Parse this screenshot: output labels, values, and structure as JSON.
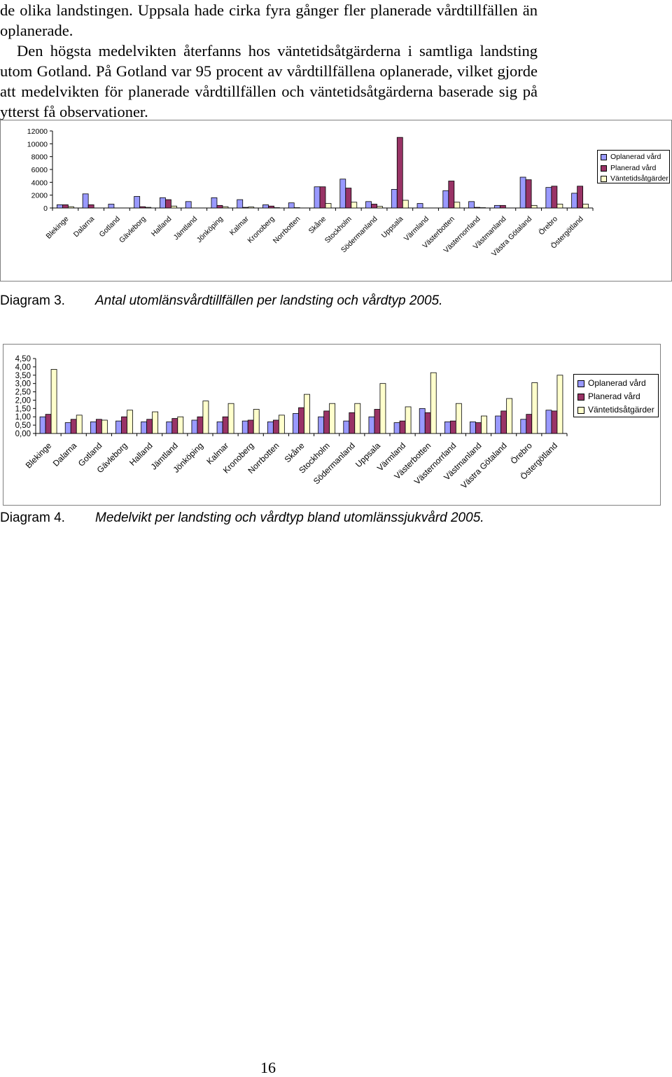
{
  "text": {
    "line1": "de olika landstingen. Uppsala hade cirka fyra gånger fler planerade vårdtillfällen än oplanerade.",
    "para2": "Den högsta medelvikten återfanns hos väntetidsåtgärderna i samtliga landsting utom Gotland. På Gotland var 95 procent av vårdtillfällena oplanerade, vilket gjorde att medelvikten för planerade vårdtillfällen och väntetidsåtgärderna baserade sig på ytterst få observationer."
  },
  "captions": {
    "c3_num": "Diagram 3.",
    "c3_text": "Antal utomlänsvårdtillfällen per landsting och vårdtyp 2005.",
    "c4_num": "Diagram 4.",
    "c4_text": "Medelvikt per landsting och vårdtyp bland utomlänssjukvård 2005."
  },
  "page_number": "16",
  "colors": {
    "oplanerad": "#9999FF",
    "planerad": "#993366",
    "vantetid": "#FFFFCC"
  },
  "chart_data": [
    {
      "type": "bar",
      "title": "Antal utomlänsvårdtillfällen per landsting och vårdtyp 2005",
      "xlabel": "",
      "ylabel": "",
      "ylim": [
        0,
        12000
      ],
      "yticks": [
        "0",
        "2000",
        "4000",
        "6000",
        "8000",
        "10000",
        "12000"
      ],
      "grid": false,
      "legend_position": "right",
      "categories": [
        "Blekinge",
        "Dalarna",
        "Gotland",
        "Gävleborg",
        "Halland",
        "Jämtland",
        "Jönköping",
        "Kalmar",
        "Kronoberg",
        "Norrbotten",
        "Skåne",
        "Stockholm",
        "Södermanland",
        "Uppsala",
        "Värmland",
        "Västerbotten",
        "Västernorrland",
        "Västmanland",
        "Västra Götaland",
        "Örebro",
        "Östergötland"
      ],
      "series": [
        {
          "name": "Oplanerad vård",
          "values": [
            500,
            2200,
            600,
            1800,
            1600,
            1000,
            1600,
            1300,
            500,
            800,
            3300,
            4500,
            1000,
            2900,
            700,
            2700,
            1000,
            400,
            4800,
            3200,
            2300
          ]
        },
        {
          "name": "Planerad vård",
          "values": [
            500,
            500,
            0,
            200,
            1300,
            0,
            400,
            100,
            300,
            50,
            3300,
            3100,
            600,
            11000,
            0,
            4200,
            100,
            400,
            4400,
            3400,
            3400
          ]
        },
        {
          "name": "Väntetidsåtgärder",
          "values": [
            200,
            0,
            0,
            100,
            300,
            0,
            200,
            150,
            50,
            0,
            700,
            900,
            250,
            1200,
            0,
            900,
            50,
            0,
            400,
            600,
            600
          ]
        }
      ]
    },
    {
      "type": "bar",
      "title": "Medelvikt per landsting och vårdtyp bland utomlänssjukvård 2005",
      "xlabel": "",
      "ylabel": "",
      "ylim": [
        0,
        4.5
      ],
      "yticks": [
        "0,00",
        "0,50",
        "1,00",
        "1,50",
        "2,00",
        "2,50",
        "3,00",
        "3,50",
        "4,00",
        "4,50"
      ],
      "grid": false,
      "legend_position": "right",
      "categories": [
        "Blekinge",
        "Dalarna",
        "Gotland",
        "Gävleborg",
        "Halland",
        "Jämtland",
        "Jönköping",
        "Kalmar",
        "Kronoberg",
        "Norrbotten",
        "Skåne",
        "Stockholm",
        "Södermanland",
        "Uppsala",
        "Värmland",
        "Västerbotten",
        "Västernorrland",
        "Västmanland",
        "Västra Götaland",
        "Örebro",
        "Östergötland"
      ],
      "series": [
        {
          "name": "Oplanerad vård",
          "values": [
            1.0,
            0.65,
            0.7,
            0.75,
            0.7,
            0.7,
            0.8,
            0.7,
            0.75,
            0.7,
            1.2,
            1.0,
            0.75,
            1.0,
            0.65,
            1.5,
            0.7,
            0.7,
            1.05,
            0.85,
            1.4
          ]
        },
        {
          "name": "Planerad vård",
          "values": [
            1.15,
            0.85,
            0.85,
            1.0,
            0.85,
            0.9,
            1.0,
            1.0,
            0.8,
            0.8,
            1.55,
            1.35,
            1.25,
            1.45,
            0.75,
            1.25,
            0.75,
            0.65,
            1.35,
            1.15,
            1.35
          ]
        },
        {
          "name": "Väntetidsåtgärder",
          "values": [
            3.85,
            1.1,
            0.8,
            1.4,
            1.3,
            1.0,
            1.95,
            1.8,
            1.45,
            1.1,
            2.35,
            1.8,
            1.8,
            3.0,
            1.6,
            3.65,
            1.8,
            1.05,
            2.1,
            3.05,
            3.5
          ]
        }
      ]
    }
  ]
}
